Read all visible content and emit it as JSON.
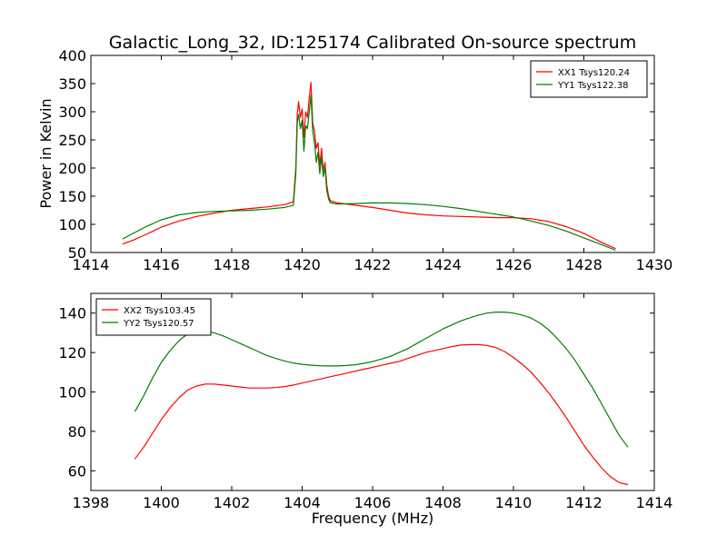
{
  "title": "Galactic_Long_32, ID:125174 Calibrated On-source spectrum",
  "chart_data": [
    {
      "type": "line",
      "title": "Galactic_Long_32, ID:125174 Calibrated On-source spectrum",
      "xlabel": "",
      "ylabel": "Power in Kelvin",
      "xlim": [
        1414,
        1430
      ],
      "ylim": [
        50,
        400
      ],
      "xticks": [
        1414,
        1416,
        1418,
        1420,
        1422,
        1424,
        1426,
        1428,
        1430
      ],
      "yticks": [
        50,
        100,
        150,
        200,
        250,
        300,
        350,
        400
      ],
      "grid": false,
      "legend_position": "top-right",
      "series": [
        {
          "name": "XX1 Tsys120.24",
          "color": "#ff0000",
          "x": [
            1414.9,
            1415.2,
            1415.6,
            1416.0,
            1416.5,
            1417.0,
            1417.5,
            1418.0,
            1418.5,
            1419.0,
            1419.5,
            1419.75,
            1419.82,
            1419.86,
            1419.9,
            1419.95,
            1420.0,
            1420.05,
            1420.1,
            1420.15,
            1420.2,
            1420.25,
            1420.3,
            1420.35,
            1420.4,
            1420.45,
            1420.5,
            1420.55,
            1420.6,
            1420.65,
            1420.7,
            1420.75,
            1420.8,
            1421.0,
            1421.5,
            1422.0,
            1422.5,
            1423.0,
            1423.5,
            1424.0,
            1424.5,
            1425.0,
            1425.5,
            1426.0,
            1426.5,
            1427.0,
            1427.5,
            1428.0,
            1428.5,
            1428.9
          ],
          "y": [
            65,
            72,
            83,
            95,
            106,
            114,
            120,
            125,
            128,
            131,
            135,
            140,
            200,
            295,
            318,
            290,
            305,
            255,
            300,
            290,
            325,
            352,
            280,
            265,
            235,
            245,
            205,
            235,
            195,
            210,
            170,
            150,
            142,
            138,
            134,
            130,
            125,
            120,
            117,
            115,
            114,
            113,
            112,
            112,
            110,
            105,
            96,
            84,
            68,
            57
          ]
        },
        {
          "name": "YY1 Tsys122.38",
          "color": "#008000",
          "x": [
            1414.9,
            1415.2,
            1415.6,
            1416.0,
            1416.5,
            1417.0,
            1417.5,
            1418.0,
            1418.5,
            1419.0,
            1419.5,
            1419.75,
            1419.82,
            1419.86,
            1419.9,
            1419.95,
            1420.0,
            1420.05,
            1420.1,
            1420.15,
            1420.2,
            1420.25,
            1420.3,
            1420.35,
            1420.4,
            1420.45,
            1420.5,
            1420.55,
            1420.6,
            1420.65,
            1420.7,
            1420.75,
            1420.8,
            1421.0,
            1421.5,
            1422.0,
            1422.5,
            1423.0,
            1423.5,
            1424.0,
            1424.5,
            1425.0,
            1425.5,
            1426.0,
            1426.5,
            1427.0,
            1427.5,
            1428.0,
            1428.5,
            1428.9
          ],
          "y": [
            74,
            84,
            97,
            108,
            117,
            121,
            123,
            124,
            125,
            127,
            130,
            134,
            190,
            280,
            295,
            270,
            285,
            230,
            275,
            270,
            300,
            330,
            265,
            245,
            210,
            228,
            190,
            220,
            185,
            200,
            160,
            145,
            138,
            136,
            137,
            138,
            138,
            137,
            135,
            132,
            128,
            123,
            118,
            113,
            106,
            98,
            88,
            76,
            64,
            54
          ]
        }
      ]
    },
    {
      "type": "line",
      "title": "",
      "xlabel": "Frequency (MHz)",
      "ylabel": "",
      "xlim": [
        1398,
        1414
      ],
      "ylim": [
        50,
        150
      ],
      "xticks": [
        1398,
        1400,
        1402,
        1404,
        1406,
        1408,
        1410,
        1412,
        1414
      ],
      "yticks": [
        60,
        80,
        100,
        120,
        140
      ],
      "grid": false,
      "legend_position": "top-left",
      "series": [
        {
          "name": "XX2 Tsys103.45",
          "color": "#ff0000",
          "x": [
            1399.25,
            1399.5,
            1399.75,
            1400.0,
            1400.25,
            1400.5,
            1400.75,
            1401.0,
            1401.25,
            1401.5,
            1401.75,
            1402.0,
            1402.25,
            1402.5,
            1402.75,
            1403.0,
            1403.25,
            1403.5,
            1403.75,
            1404.0,
            1404.25,
            1404.5,
            1404.75,
            1405.0,
            1405.25,
            1405.5,
            1405.75,
            1406.0,
            1406.25,
            1406.5,
            1406.75,
            1407.0,
            1407.25,
            1407.5,
            1407.75,
            1408.0,
            1408.25,
            1408.5,
            1408.75,
            1409.0,
            1409.25,
            1409.5,
            1409.75,
            1410.0,
            1410.25,
            1410.5,
            1410.75,
            1411.0,
            1411.25,
            1411.5,
            1411.75,
            1412.0,
            1412.25,
            1412.5,
            1412.75,
            1413.0,
            1413.25
          ],
          "y": [
            66,
            72,
            79,
            86,
            92,
            97,
            101,
            103,
            104,
            104,
            103.5,
            103,
            102.5,
            102,
            102,
            102,
            102.2,
            102.7,
            103.5,
            104.5,
            105.5,
            106.5,
            107.5,
            108.5,
            109.5,
            110.5,
            111.5,
            112.5,
            113.5,
            114.5,
            115.5,
            117,
            118.5,
            120,
            121,
            122,
            123,
            123.8,
            124,
            124,
            123.6,
            122.5,
            120.5,
            117.5,
            114,
            110,
            105,
            99.5,
            93.5,
            87,
            80,
            73,
            67,
            61.5,
            57,
            54,
            53
          ]
        },
        {
          "name": "YY2 Tsys120.57",
          "color": "#008000",
          "x": [
            1399.25,
            1399.5,
            1399.75,
            1400.0,
            1400.25,
            1400.5,
            1400.75,
            1401.0,
            1401.25,
            1401.5,
            1401.75,
            1402.0,
            1402.25,
            1402.5,
            1402.75,
            1403.0,
            1403.25,
            1403.5,
            1403.75,
            1404.0,
            1404.25,
            1404.5,
            1404.75,
            1405.0,
            1405.25,
            1405.5,
            1405.75,
            1406.0,
            1406.25,
            1406.5,
            1406.75,
            1407.0,
            1407.25,
            1407.5,
            1407.75,
            1408.0,
            1408.25,
            1408.5,
            1408.75,
            1409.0,
            1409.25,
            1409.5,
            1409.75,
            1410.0,
            1410.25,
            1410.5,
            1410.75,
            1411.0,
            1411.25,
            1411.5,
            1411.75,
            1412.0,
            1412.25,
            1412.5,
            1412.75,
            1413.0,
            1413.25
          ],
          "y": [
            90,
            98,
            107,
            115,
            121,
            126,
            129.5,
            131,
            131,
            130,
            128.5,
            126.5,
            124.5,
            122.5,
            120.5,
            118.5,
            117,
            115.7,
            114.7,
            114,
            113.6,
            113.3,
            113.2,
            113.2,
            113.4,
            113.8,
            114.5,
            115.5,
            116.7,
            118,
            120,
            122,
            124.5,
            127,
            129.5,
            132,
            134,
            136,
            137.5,
            139,
            140,
            140.5,
            140.5,
            140,
            139,
            137.5,
            135,
            131.5,
            127,
            122,
            116,
            109,
            102,
            94,
            86,
            78,
            72
          ]
        }
      ]
    }
  ]
}
